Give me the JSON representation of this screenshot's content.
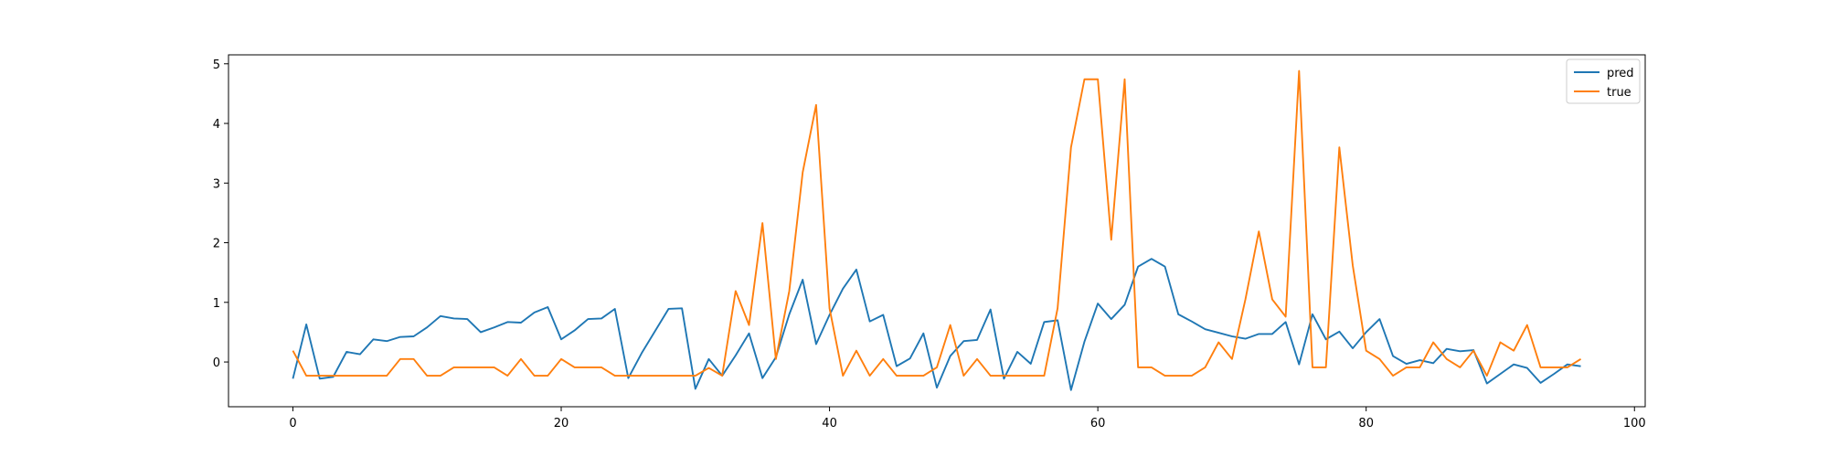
{
  "chart_data": {
    "type": "line",
    "title": "",
    "xlabel": "",
    "ylabel": "",
    "xlim": [
      -4.8,
      100.8
    ],
    "ylim": [
      -0.75,
      5.15
    ],
    "xticks": [
      0,
      20,
      40,
      60,
      80,
      100
    ],
    "yticks": [
      0,
      1,
      2,
      3,
      4,
      5
    ],
    "grid": false,
    "legend": "top-right",
    "x": [
      0,
      1,
      2,
      3,
      4,
      5,
      6,
      7,
      8,
      9,
      10,
      11,
      12,
      13,
      14,
      15,
      16,
      17,
      18,
      19,
      20,
      21,
      22,
      23,
      24,
      25,
      26,
      27,
      28,
      29,
      30,
      31,
      32,
      33,
      34,
      35,
      36,
      37,
      38,
      39,
      40,
      41,
      42,
      43,
      44,
      45,
      46,
      47,
      48,
      49,
      50,
      51,
      52,
      53,
      54,
      55,
      56,
      57,
      58,
      59,
      60,
      61,
      62,
      63,
      64,
      65,
      66,
      67,
      68,
      69,
      70,
      71,
      72,
      73,
      74,
      75,
      76,
      77,
      78,
      79,
      80,
      81,
      82,
      83,
      84,
      85,
      86,
      87,
      88,
      89,
      90,
      91,
      92,
      93,
      94,
      95,
      96
    ],
    "series": [
      {
        "name": "pred",
        "color": "#1f77b4",
        "values": [
          -0.28,
          0.63,
          -0.28,
          -0.25,
          0.17,
          0.13,
          0.38,
          0.35,
          0.42,
          0.43,
          0.58,
          0.77,
          0.73,
          0.72,
          0.5,
          0.58,
          0.67,
          0.66,
          0.83,
          0.92,
          0.38,
          0.53,
          0.72,
          0.73,
          0.89,
          -0.27,
          0.15,
          0.52,
          0.89,
          0.9,
          -0.45,
          0.05,
          -0.23,
          0.11,
          0.48,
          -0.27,
          0.08,
          0.8,
          1.38,
          0.3,
          0.79,
          1.23,
          1.55,
          0.68,
          0.79,
          -0.07,
          0.06,
          0.48,
          -0.43,
          0.1,
          0.35,
          0.37,
          0.88,
          -0.28,
          0.17,
          -0.03,
          0.67,
          0.7,
          -0.47,
          0.34,
          0.98,
          0.72,
          0.96,
          1.6,
          1.73,
          1.6,
          0.8,
          0.68,
          0.55,
          0.49,
          0.43,
          0.39,
          0.47,
          0.47,
          0.67,
          -0.04,
          0.8,
          0.38,
          0.51,
          0.23,
          0.5,
          0.72,
          0.1,
          -0.03,
          0.03,
          -0.02,
          0.22,
          0.18,
          0.2,
          -0.36,
          -0.2,
          -0.04,
          -0.1,
          -0.35,
          -0.2,
          -0.04,
          -0.07
        ]
      },
      {
        "name": "true",
        "color": "#ff7f0e",
        "values": [
          0.19,
          -0.23,
          -0.23,
          -0.23,
          -0.23,
          -0.23,
          -0.23,
          -0.23,
          0.05,
          0.05,
          -0.23,
          -0.23,
          -0.09,
          -0.09,
          -0.09,
          -0.09,
          -0.23,
          0.05,
          -0.23,
          -0.23,
          0.05,
          -0.09,
          -0.09,
          -0.09,
          -0.23,
          -0.23,
          -0.23,
          -0.23,
          -0.23,
          -0.23,
          -0.23,
          -0.1,
          -0.23,
          1.19,
          0.62,
          2.33,
          0.05,
          1.19,
          3.18,
          4.31,
          0.9,
          -0.23,
          0.19,
          -0.23,
          0.05,
          -0.23,
          -0.23,
          -0.23,
          -0.09,
          0.62,
          -0.23,
          0.05,
          -0.23,
          -0.23,
          -0.23,
          -0.23,
          -0.23,
          0.9,
          3.6,
          4.74,
          4.74,
          2.05,
          4.74,
          -0.09,
          -0.09,
          -0.23,
          -0.23,
          -0.23,
          -0.09,
          0.33,
          0.05,
          1.05,
          2.19,
          1.05,
          0.76,
          4.88,
          -0.09,
          -0.09,
          3.6,
          1.62,
          0.19,
          0.05,
          -0.23,
          -0.09,
          -0.09,
          0.33,
          0.05,
          -0.09,
          0.19,
          -0.23,
          0.33,
          0.19,
          0.62,
          -0.09,
          -0.09,
          -0.09,
          0.05
        ]
      }
    ]
  }
}
